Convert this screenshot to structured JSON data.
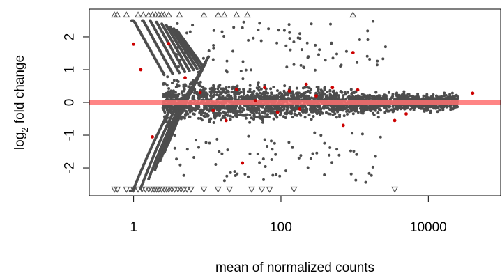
{
  "chart_data": {
    "type": "scatter",
    "title": "",
    "xlabel": "mean of normalized counts",
    "ylabel_main": "log",
    "ylabel_sub": "2",
    "ylabel_rest": " fold change",
    "x_scale": "log10",
    "xlim": [
      0.25,
      100000
    ],
    "ylim": [
      -2.85,
      2.85
    ],
    "x_ticks": [
      {
        "value": 1,
        "label": "1"
      },
      {
        "value": 100,
        "label": "100"
      },
      {
        "value": 10000,
        "label": "10000"
      }
    ],
    "y_ticks": [
      {
        "value": -2,
        "label": "-2"
      },
      {
        "value": -1,
        "label": "-1"
      },
      {
        "value": 0,
        "label": "0"
      },
      {
        "value": 1,
        "label": "1"
      },
      {
        "value": 2,
        "label": "2"
      }
    ],
    "reference_line": {
      "y": 0,
      "color": "#ff7070"
    },
    "colors": {
      "points": "#4d4d4d",
      "significant": "#cc0000",
      "outliers": "#555555"
    },
    "grid": false,
    "legend": "none",
    "highlighted_points": [
      {
        "x": 1.0,
        "y": 1.78
      },
      {
        "x": 1.25,
        "y": 1.0
      },
      {
        "x": 1.8,
        "y": -1.05
      },
      {
        "x": 3.0,
        "y": 1.8
      },
      {
        "x": 5.0,
        "y": 0.75
      },
      {
        "x": 8.0,
        "y": 0.3
      },
      {
        "x": 12,
        "y": -0.25
      },
      {
        "x": 18,
        "y": -0.55
      },
      {
        "x": 25,
        "y": 0.4
      },
      {
        "x": 30,
        "y": -1.85
      },
      {
        "x": 45,
        "y": 0.05
      },
      {
        "x": 60,
        "y": 0.45
      },
      {
        "x": 90,
        "y": -0.3
      },
      {
        "x": 130,
        "y": 0.35
      },
      {
        "x": 180,
        "y": -0.2
      },
      {
        "x": 220,
        "y": 0.55
      },
      {
        "x": 300,
        "y": 0.2
      },
      {
        "x": 500,
        "y": 0.45
      },
      {
        "x": 700,
        "y": -0.7
      },
      {
        "x": 950,
        "y": 1.52
      },
      {
        "x": 1100,
        "y": 0.38
      },
      {
        "x": 3500,
        "y": -0.55
      },
      {
        "x": 5000,
        "y": -0.35
      },
      {
        "x": 40000,
        "y": 0.28
      }
    ],
    "outliers_high_x": [
      0.55,
      0.6,
      0.8,
      1.15,
      1.35,
      1.6,
      1.8,
      2.0,
      2.2,
      2.4,
      2.6,
      3.0,
      4.2,
      9,
      14,
      17,
      25,
      35,
      950
    ],
    "outliers_low_x": [
      0.55,
      0.6,
      0.8,
      1.0,
      1.15,
      1.3,
      1.45,
      1.6,
      1.75,
      1.9,
      2.05,
      2.2,
      2.4,
      2.6,
      2.8,
      3.0,
      3.3,
      3.6,
      4.0,
      4.4,
      4.8,
      5.3,
      6.0,
      9,
      14,
      20,
      40,
      55,
      70,
      150,
      3500
    ]
  }
}
